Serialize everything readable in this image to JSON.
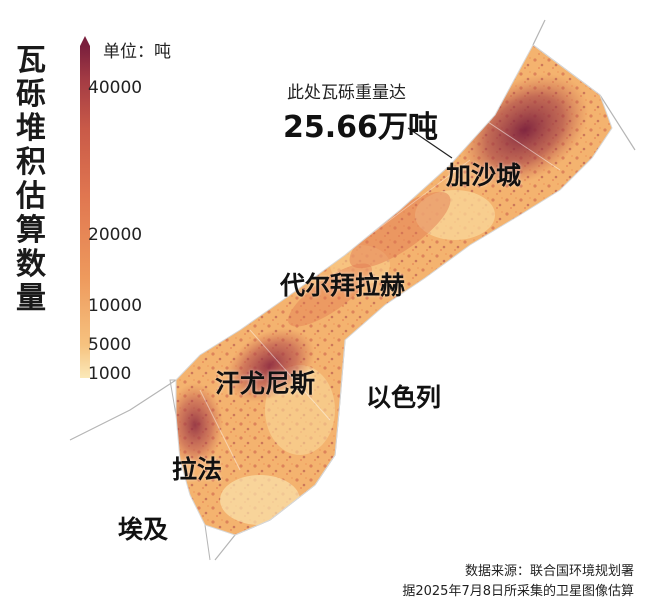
{
  "legend": {
    "title": "瓦砾堆积估算数量",
    "unit": "单位：吨",
    "ticks": [
      {
        "label": "40000",
        "value": 40000
      },
      {
        "label": "20000",
        "value": 20000
      },
      {
        "label": "10000",
        "value": 10000
      },
      {
        "label": "5000",
        "value": 5000
      },
      {
        "label": "1000",
        "value": 1000
      }
    ],
    "colors": [
      "#fbe9b9",
      "#f6c27f",
      "#ee9a5d",
      "#e07650",
      "#c95a48",
      "#a33b44",
      "#7a1f3d"
    ]
  },
  "callout": {
    "label": "此处瓦砾重量达",
    "value": "25.66万吨"
  },
  "places": {
    "gaza_city": "加沙城",
    "deir_al_balah": "代尔拜拉赫",
    "khan_younis": "汗尤尼斯",
    "rafah": "拉法",
    "israel": "以色列",
    "egypt": "埃及"
  },
  "source": {
    "line1": "数据来源：联合国环境规划署",
    "line2": "据2025年7月8日所采集的卫星图像估算"
  }
}
